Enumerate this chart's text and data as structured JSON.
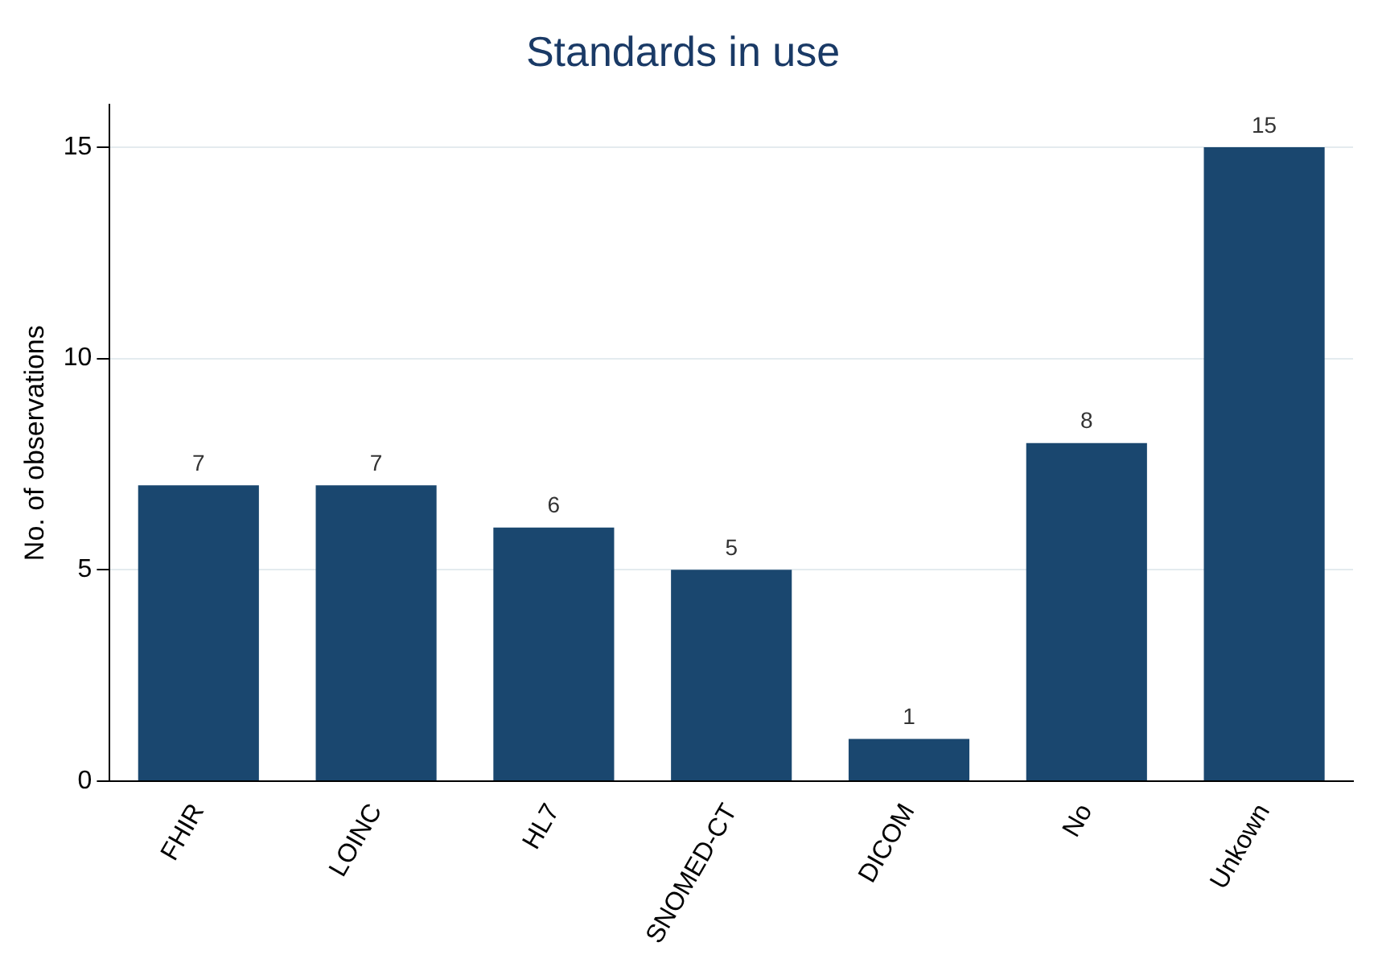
{
  "chart_data": {
    "type": "bar",
    "title": "Standards in use",
    "ylabel": "No. of observations",
    "categories": [
      "FHIR",
      "LOINC",
      "HL7",
      "SNOMED-CT",
      "DICOM",
      "No",
      "Unkown"
    ],
    "values": [
      7,
      7,
      6,
      5,
      1,
      8,
      15
    ],
    "color": "#1a476f",
    "ylim": [
      0,
      16
    ],
    "yticks": [
      0,
      5,
      10,
      15
    ],
    "grid": "y",
    "data_labels": true,
    "legend": false
  }
}
